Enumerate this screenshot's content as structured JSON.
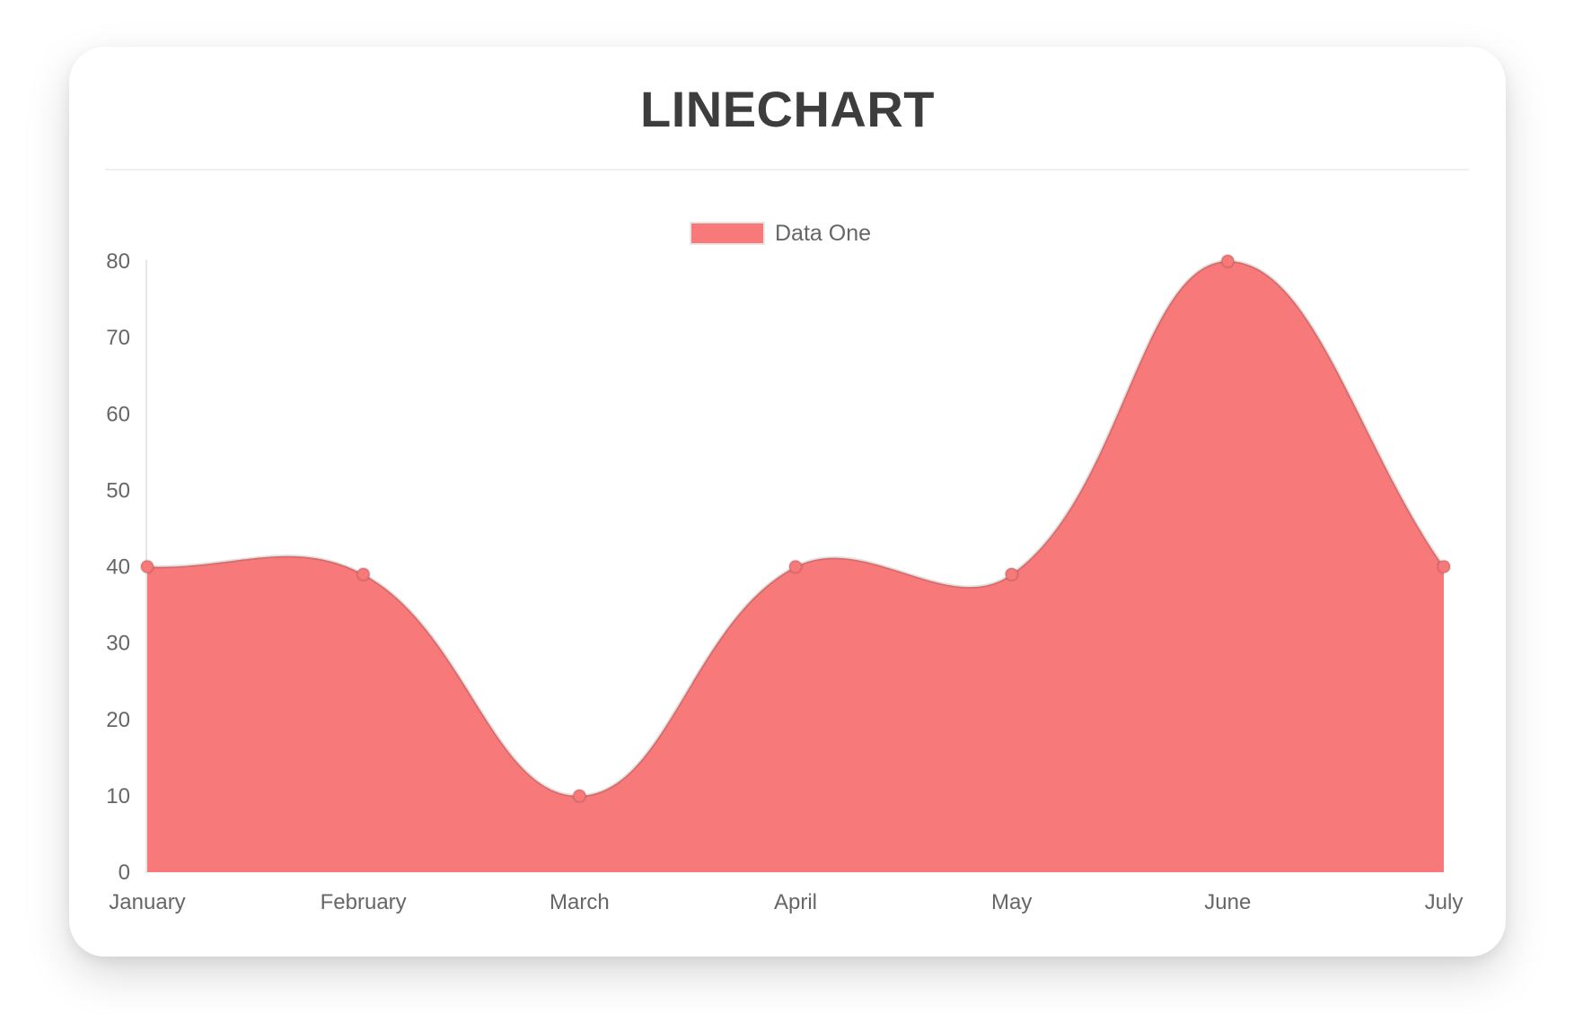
{
  "header": {
    "title": "LINECHART"
  },
  "legend": {
    "items": [
      {
        "label": "Data One",
        "swatch_color": "#f87979",
        "swatch_border_color": "#e6e6e6"
      }
    ]
  },
  "chart_data": {
    "type": "area",
    "title": "LINECHART",
    "categories": [
      "January",
      "February",
      "March",
      "April",
      "May",
      "June",
      "July"
    ],
    "series": [
      {
        "name": "Data One",
        "values": [
          40,
          39,
          10,
          40,
          39,
          80,
          40
        ],
        "fill_color": "#f87979",
        "line_color": "rgba(0,0,0,0.12)",
        "point_fill_color": "#f87979",
        "point_border_color": "rgba(0,0,0,0.10)"
      }
    ],
    "xlabel": "",
    "ylabel": "",
    "ylim": [
      0,
      80
    ],
    "yticks": [
      0,
      10,
      20,
      30,
      40,
      50,
      60,
      70,
      80
    ],
    "grid": false,
    "legend_position": "top-center",
    "line_tension": 0.4,
    "axis_line_color": "#e6e6e6",
    "tick_label_color": "#666666",
    "title_color": "#3d3d3d"
  }
}
